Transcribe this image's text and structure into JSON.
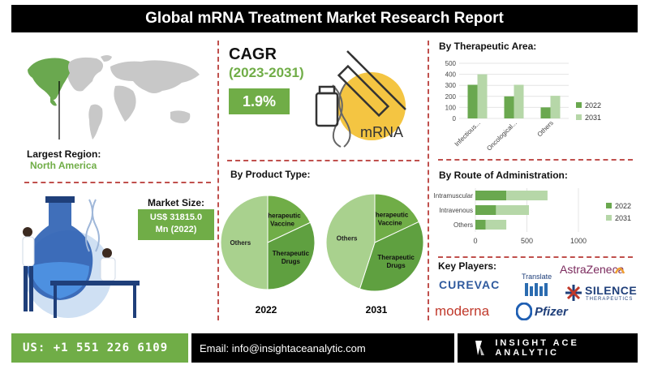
{
  "title": "Global mRNA Treatment Market Research Report",
  "region": {
    "label": "Largest Region:",
    "value": "North America"
  },
  "cagr": {
    "title": "CAGR",
    "years": "(2023-2031)",
    "value": "1.9%",
    "illustration_text": "mRNA"
  },
  "market_size": {
    "label": "Market Size:",
    "line1": "US$ 31815.0",
    "line2": "Mn (2022)"
  },
  "colors": {
    "dark_green": "#70ad47",
    "light_green": "#a9d18e",
    "accent": "#c0504d",
    "bar_dark": "#6aa84f",
    "bar_light": "#b6d7a8"
  },
  "chart_data": [
    {
      "type": "bar",
      "title": "By Therapeutic Area:",
      "categories": [
        "Infectious...",
        "Oncological...",
        "Others"
      ],
      "series": [
        {
          "name": "2022",
          "values": [
            305,
            200,
            100
          ]
        },
        {
          "name": "2031",
          "values": [
            400,
            305,
            205
          ]
        }
      ],
      "ylim": [
        0,
        500
      ],
      "yticks": [
        0,
        100,
        200,
        300,
        400,
        500
      ],
      "legend": "right"
    },
    {
      "type": "bar",
      "orientation": "horizontal",
      "stacked": true,
      "title": "By Route of Administration:",
      "categories": [
        "Intramuscular",
        "Intravenous",
        "Others"
      ],
      "series": [
        {
          "name": "2022",
          "values": [
            300,
            200,
            100
          ]
        },
        {
          "name": "2031",
          "values": [
            400,
            320,
            200
          ]
        }
      ],
      "xlim": [
        0,
        1000
      ],
      "xticks": [
        0,
        500,
        1000
      ],
      "legend": "right"
    },
    {
      "type": "pie",
      "title": "By Product Type:",
      "caption": "2022",
      "labels": [
        "Therapeutic Vaccine",
        "Therapeutic Drugs",
        "Others"
      ],
      "values": [
        18,
        32,
        50
      ]
    },
    {
      "type": "pie",
      "caption": "2031",
      "labels": [
        "Therapeutic Vaccine",
        "Therapeutic Drugs",
        "Others"
      ],
      "values": [
        18,
        37,
        45
      ]
    }
  ],
  "pie_labels": {
    "vaccine_line1": "Therapeutic",
    "vaccine_line2": "Vaccine",
    "drugs_line1": "Therapeutic",
    "drugs_line2": "Drugs",
    "others": "Others"
  },
  "key_players": {
    "title": "Key Players:",
    "curevac": "CUREVAC",
    "translate": "Translate",
    "astrazeneca": "AstraZeneca",
    "silence": "SILENCE",
    "silence_sub": "THERAPEUTICS",
    "moderna": "moderna",
    "pfizer": "Pfizer"
  },
  "footer": {
    "phone": "US: +1 551 226 6109",
    "email": "Email: info@insightaceanalytic.com",
    "brand": "INSIGHT ACE ANALYTIC"
  }
}
